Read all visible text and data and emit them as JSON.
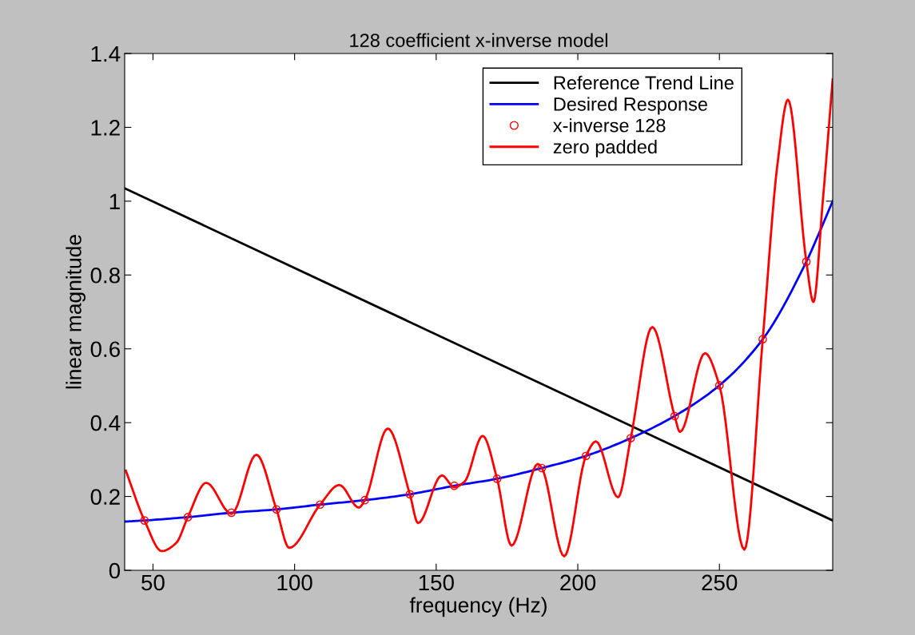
{
  "chart_data": {
    "type": "line",
    "title": "128 coefficient x-inverse model",
    "xlabel": "frequency (Hz)",
    "ylabel": "linear magnitude",
    "xlim": [
      40,
      290
    ],
    "xticks": [
      50,
      100,
      150,
      200,
      250
    ],
    "ylim": [
      0,
      1.4
    ],
    "yticks": [
      0,
      0.2,
      0.4,
      0.6,
      0.8,
      1,
      1.2,
      1.4
    ],
    "grid": false,
    "legend": "top right",
    "series": [
      {
        "name": "Reference Trend Line",
        "color": "#000000",
        "marker": "none",
        "x": [
          40,
          290
        ],
        "values": [
          1.035,
          0.135
        ]
      },
      {
        "name": "Desired Response",
        "color": "#0000ff",
        "marker": "none",
        "x": [
          40,
          47,
          62.3,
          77.7,
          93.6,
          109,
          124.8,
          140.7,
          156.4,
          171.5,
          187.3,
          202.9,
          218.7,
          234.2,
          250,
          265.3,
          280.7,
          285,
          290
        ],
        "values": [
          0.132,
          0.135,
          0.144,
          0.156,
          0.165,
          0.178,
          0.19,
          0.206,
          0.229,
          0.248,
          0.277,
          0.31,
          0.358,
          0.418,
          0.501,
          0.626,
          0.836,
          0.91,
          1.0
        ]
      },
      {
        "name": "x-inverse 128",
        "type": "scatter",
        "color": "#ff0000",
        "marker": "circle",
        "x": [
          47,
          62.3,
          77.7,
          93.6,
          109,
          124.8,
          140.7,
          156.4,
          171.5,
          187.3,
          202.9,
          218.7,
          234.2,
          250,
          265.3,
          280.7
        ],
        "values": [
          0.135,
          0.144,
          0.156,
          0.165,
          0.178,
          0.19,
          0.206,
          0.229,
          0.248,
          0.277,
          0.31,
          0.358,
          0.418,
          0.501,
          0.626,
          0.836
        ]
      },
      {
        "name": "zero padded",
        "color": "#ff0000",
        "marker": "none",
        "x": [
          40.4,
          47,
          53.1,
          58.2,
          62.3,
          68.8,
          77.7,
          86.5,
          93.6,
          98.1,
          109,
          115.8,
          122.7,
          124.8,
          132.9,
          140.7,
          143.6,
          152,
          156.4,
          160,
          166.4,
          171.5,
          176.6,
          185.9,
          187.3,
          195.2,
          202.9,
          206.4,
          214.2,
          218.7,
          226.3,
          234.2,
          236.1,
          244.9,
          250,
          258.8,
          265.3,
          270.5,
          274.2,
          280.7,
          283.2,
          286.5,
          290
        ],
        "values": [
          0.27,
          0.135,
          0.052,
          0.074,
          0.144,
          0.237,
          0.153,
          0.313,
          0.165,
          0.061,
          0.178,
          0.231,
          0.17,
          0.19,
          0.384,
          0.206,
          0.128,
          0.257,
          0.225,
          0.24,
          0.364,
          0.248,
          0.067,
          0.288,
          0.277,
          0.038,
          0.31,
          0.349,
          0.198,
          0.358,
          0.659,
          0.418,
          0.375,
          0.588,
          0.501,
          0.056,
          0.626,
          1.1,
          1.275,
          0.836,
          0.727,
          1.0,
          1.33
        ]
      }
    ]
  }
}
